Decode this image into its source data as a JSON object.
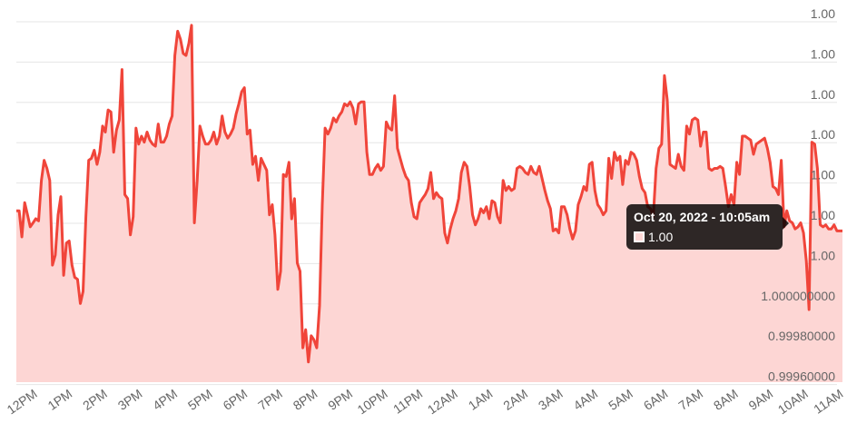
{
  "chart_data": {
    "type": "area",
    "color": "#f0453a",
    "fill_color": "#fdd6d4",
    "grid": true,
    "y_tick_labels": [
      "1.00",
      "1.00",
      "1.00",
      "1.00",
      "1.00",
      "1.00",
      "1.00",
      "1.000000000",
      "0.99980000",
      "0.99960000"
    ],
    "ylim": [
      0.99955,
      1.0014
    ],
    "x_tick_labels": [
      "12PM",
      "1PM",
      "2PM",
      "3PM",
      "4PM",
      "5PM",
      "6PM",
      "7PM",
      "8PM",
      "9PM",
      "10PM",
      "11PM",
      "12AM",
      "1AM",
      "2AM",
      "3AM",
      "4AM",
      "5AM",
      "6AM",
      "7AM",
      "8AM",
      "9AM",
      "10AM",
      "11AM"
    ],
    "series": [
      {
        "values": [
          1.0004,
          1.0004,
          1.00027,
          1.00044,
          1.00038,
          1.00032,
          1.00034,
          1.00036,
          1.00035,
          1.00055,
          1.00065,
          1.00061,
          1.00055,
          1.00013,
          1.00018,
          1.00038,
          1.00047,
          1.00008,
          1.00024,
          1.00025,
          1.00013,
          1.00007,
          1.00006,
          0.99994,
          1.0,
          1.00037,
          1.00065,
          1.00066,
          1.0007,
          1.00063,
          1.00069,
          1.00082,
          1.00079,
          1.0009,
          1.00089,
          1.00069,
          1.0008,
          1.00085,
          1.0011,
          1.00048,
          1.00046,
          1.00028,
          1.00037,
          1.00081,
          1.00073,
          1.00077,
          1.00074,
          1.00079,
          1.00075,
          1.00073,
          1.00072,
          1.00083,
          1.00074,
          1.00074,
          1.00077,
          1.00083,
          1.00087,
          1.00117,
          1.00129,
          1.00125,
          1.00118,
          1.00117,
          1.00123,
          1.00132,
          1.00034,
          1.00055,
          1.00082,
          1.00077,
          1.00073,
          1.00073,
          1.00075,
          1.00079,
          1.00073,
          1.00077,
          1.00087,
          1.00079,
          1.00076,
          1.00078,
          1.00081,
          1.00088,
          1.00093,
          1.00099,
          1.00101,
          1.00078,
          1.0008,
          1.00063,
          1.00067,
          1.00055,
          1.00066,
          1.00063,
          1.0006,
          1.00038,
          1.00043,
          1.00028,
          1.00001,
          1.0001,
          1.00058,
          1.00057,
          1.00064,
          1.00036,
          1.00046,
          1.00014,
          1.0001,
          0.99972,
          0.99981,
          0.99965,
          0.99978,
          0.99976,
          0.99972,
          0.99993,
          1.00043,
          1.00081,
          1.00078,
          1.00081,
          1.00086,
          1.00084,
          1.00087,
          1.00089,
          1.00093,
          1.00092,
          1.00094,
          1.00091,
          1.00083,
          1.00093,
          1.00094,
          1.00094,
          1.00069,
          1.00058,
          1.00058,
          1.00061,
          1.00063,
          1.0006,
          1.00062,
          1.00084,
          1.00081,
          1.0008,
          1.00097,
          1.00071,
          1.00066,
          1.00061,
          1.00057,
          1.00055,
          1.00044,
          1.00037,
          1.00036,
          1.00044,
          1.00046,
          1.00048,
          1.00051,
          1.00059,
          1.00046,
          1.00049,
          1.00047,
          1.00046,
          1.00029,
          1.00024,
          1.00031,
          1.00036,
          1.0004,
          1.00046,
          1.00059,
          1.00064,
          1.00062,
          1.00052,
          1.00038,
          1.00033,
          1.00036,
          1.00041,
          1.00039,
          1.00042,
          1.00036,
          1.00045,
          1.00044,
          1.00037,
          1.00034,
          1.00055,
          1.0005,
          1.00052,
          1.0005,
          1.00051,
          1.00061,
          1.00062,
          1.00061,
          1.00059,
          1.00058,
          1.00062,
          1.00059,
          1.00058,
          1.00062,
          1.00056,
          1.0005,
          1.00045,
          1.00041,
          1.0003,
          1.00031,
          1.00029,
          1.00042,
          1.00042,
          1.00038,
          1.00031,
          1.00026,
          1.0003,
          1.00043,
          1.00047,
          1.00052,
          1.0005,
          1.00063,
          1.00064,
          1.0005,
          1.00043,
          1.00041,
          1.00038,
          1.0004,
          1.00066,
          1.00056,
          1.00069,
          1.00065,
          1.00067,
          1.00053,
          1.00065,
          1.00063,
          1.00069,
          1.00068,
          1.00065,
          1.00057,
          1.00051,
          1.00049,
          1.00042,
          1.00041,
          1.00037,
          1.00061,
          1.00071,
          1.00073,
          1.00107,
          1.00095,
          1.00063,
          1.00062,
          1.00061,
          1.00068,
          1.00062,
          1.0006,
          1.00082,
          1.00078,
          1.00085,
          1.00086,
          1.00085,
          1.00072,
          1.00079,
          1.00079,
          1.00061,
          1.0006,
          1.00061,
          1.00061,
          1.00062,
          1.00061,
          1.00052,
          1.00042,
          1.00048,
          1.00043,
          1.00064,
          1.00058,
          1.00077,
          1.00077,
          1.00076,
          1.00075,
          1.00068,
          1.00073,
          1.00074,
          1.00075,
          1.00076,
          1.00071,
          1.00064,
          1.00052,
          1.00051,
          1.00048,
          1.00065,
          1.00032,
          1.0004,
          1.00035,
          1.00034,
          1.00031,
          1.00032,
          1.00034,
          1.00029,
          1.00015,
          0.99991,
          1.00074,
          1.00073,
          1.00061,
          1.00033,
          1.00032,
          1.00033,
          1.00031,
          1.00031,
          1.00033,
          1.0003,
          1.0003,
          1.0003
        ]
      }
    ]
  },
  "tooltip": {
    "title": "Oct 20, 2022 - 10:05am",
    "value": "1.00"
  }
}
